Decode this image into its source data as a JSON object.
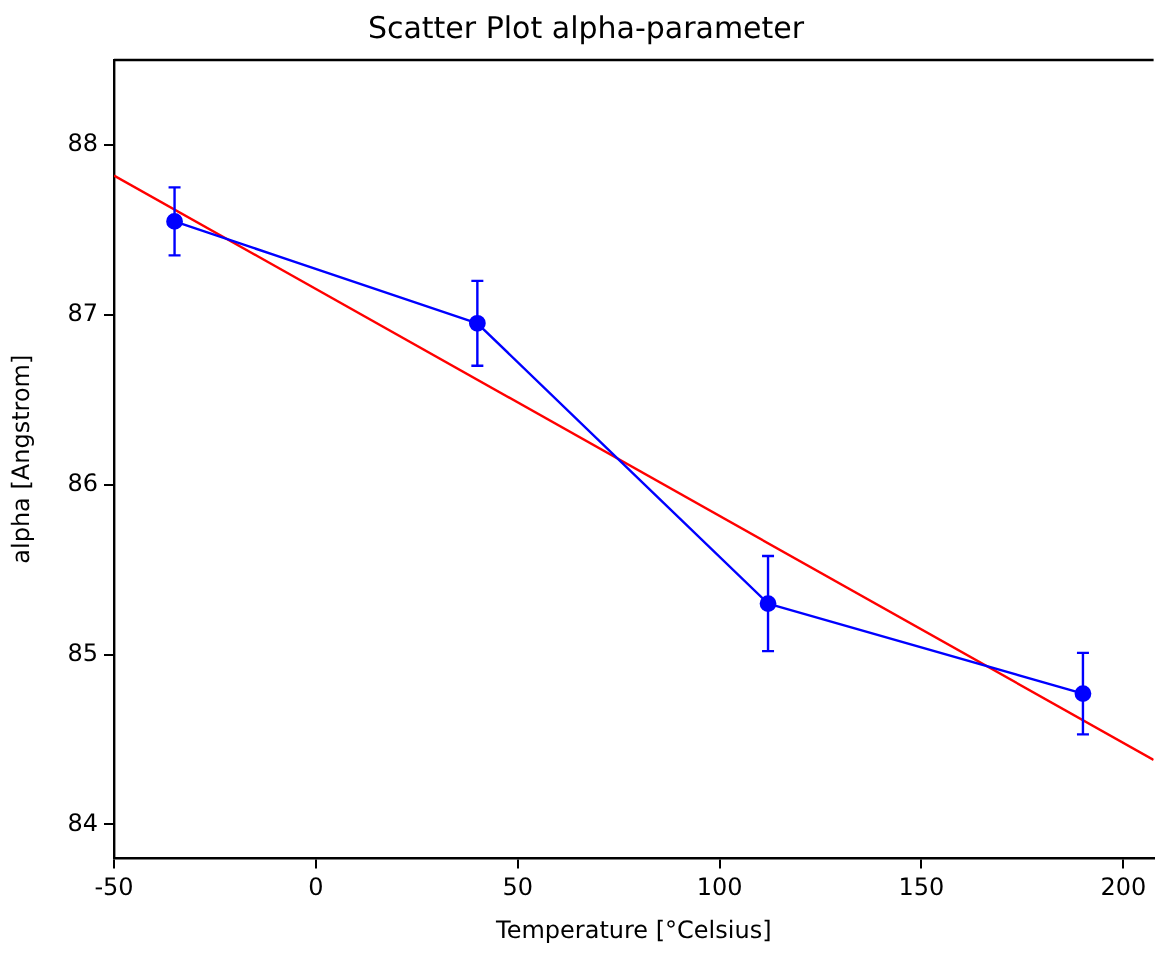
{
  "chart_data": {
    "type": "line",
    "title": "Scatter Plot alpha-parameter",
    "xlabel": "Temperature [°Celsius]",
    "ylabel": "alpha [Angstrom]",
    "x": [
      -35,
      40,
      112,
      190
    ],
    "series": [
      {
        "type": "line",
        "color": "#0000ff",
        "values": [
          87.55,
          86.95,
          85.3,
          84.77
        ],
        "errors": [
          0.2,
          0.25,
          0.28,
          0.24
        ],
        "marker": "circle"
      },
      {
        "type": "line",
        "color": "#ff0000",
        "x": [
          -50,
          207.5
        ],
        "values": [
          87.82,
          84.38
        ],
        "marker": "none"
      }
    ],
    "xlim": [
      -50,
      207.5
    ],
    "xticks": [
      -50,
      0,
      50,
      100,
      150,
      200
    ],
    "ylim": [
      83.8,
      88.5
    ],
    "yticks": [
      84,
      85,
      86,
      87,
      88
    ],
    "grid": false,
    "legend": false
  }
}
